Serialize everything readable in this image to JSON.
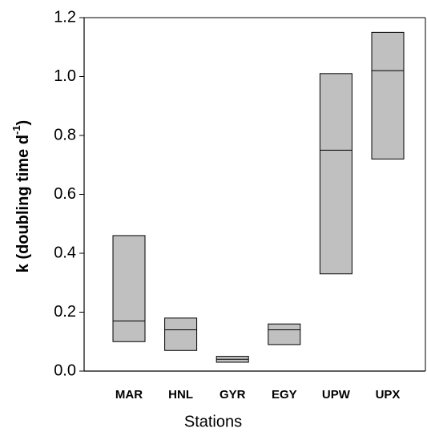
{
  "chart_data": {
    "type": "floating-box",
    "xlabel": "Stations",
    "ylabel": "k (doubling time d",
    "ylabel_sup": "-1",
    "ylabel_end": ")",
    "categories": [
      "MAR",
      "HNL",
      "GYR",
      "EGY",
      "UPW",
      "UPX"
    ],
    "low": [
      0.1,
      0.07,
      0.03,
      0.09,
      0.33,
      0.72
    ],
    "median": [
      0.17,
      0.14,
      0.04,
      0.14,
      0.75,
      1.02
    ],
    "high": [
      0.46,
      0.18,
      0.05,
      0.16,
      1.01,
      1.15
    ],
    "color": "#c0c0c0",
    "ylim": [
      0,
      1.2
    ],
    "yticks": [
      {
        "value": 0,
        "label": "0.0"
      },
      0.2,
      0.4,
      0.6,
      0.8,
      {
        "value": 1,
        "label": "1.0"
      },
      1.2
    ]
  }
}
